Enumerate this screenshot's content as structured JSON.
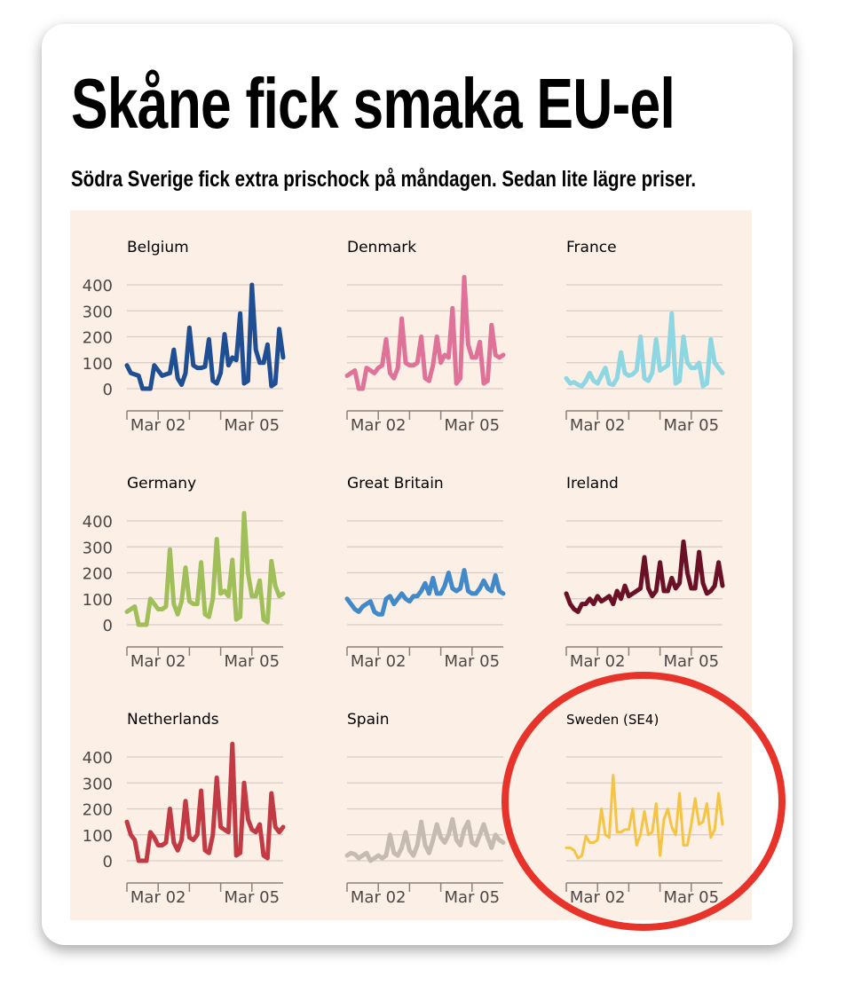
{
  "title": "Skåne fick smaka EU-el",
  "subtitle": "Södra Sverige fick extra prischock på måndagen. Sedan lite lägre priser.",
  "chart_data": {
    "type": "line",
    "layout": "small-multiples 3x3",
    "x_range_days": [
      "Mar 01",
      "Mar 06"
    ],
    "x_step_hours": 3,
    "xticks": [
      "Mar 01",
      "Mar 02",
      "Mar 03",
      "Mar 04",
      "Mar 05"
    ],
    "xtick_labels": [
      "",
      "Mar 02",
      "",
      "",
      "Mar 05"
    ],
    "yticks": [
      0,
      100,
      200,
      300,
      400
    ],
    "ylim": [
      0,
      450
    ],
    "grid": true,
    "series": [
      {
        "name": "Belgium",
        "color": "#1f4e93",
        "show_yticks": true,
        "values": [
          90,
          60,
          55,
          50,
          0,
          0,
          0,
          90,
          70,
          50,
          55,
          60,
          150,
          40,
          15,
          60,
          235,
          90,
          80,
          80,
          85,
          190,
          30,
          20,
          60,
          210,
          90,
          120,
          110,
          290,
          20,
          30,
          400,
          150,
          100,
          100,
          170,
          10,
          20,
          230,
          120
        ]
      },
      {
        "name": "Denmark",
        "color": "#de7298",
        "show_yticks": false,
        "values": [
          50,
          60,
          70,
          0,
          0,
          80,
          70,
          60,
          80,
          90,
          190,
          60,
          40,
          80,
          270,
          100,
          90,
          90,
          100,
          200,
          40,
          30,
          90,
          200,
          100,
          130,
          120,
          310,
          20,
          40,
          430,
          170,
          120,
          120,
          180,
          20,
          30,
          245,
          130,
          120,
          130
        ]
      },
      {
        "name": "France",
        "color": "#8dd6e2",
        "show_yticks": false,
        "values": [
          40,
          20,
          25,
          15,
          10,
          30,
          60,
          30,
          20,
          50,
          80,
          20,
          15,
          40,
          140,
          60,
          50,
          55,
          70,
          200,
          40,
          30,
          60,
          190,
          70,
          80,
          90,
          290,
          20,
          30,
          200,
          100,
          80,
          80,
          100,
          10,
          20,
          190,
          100,
          80,
          60
        ]
      },
      {
        "name": "Germany",
        "color": "#a0bf5a",
        "show_yticks": true,
        "values": [
          50,
          60,
          70,
          0,
          0,
          0,
          100,
          80,
          60,
          60,
          70,
          290,
          80,
          40,
          90,
          220,
          90,
          80,
          80,
          240,
          40,
          30,
          100,
          330,
          120,
          130,
          110,
          250,
          20,
          30,
          430,
          200,
          110,
          110,
          170,
          20,
          10,
          245,
          150,
          110,
          120
        ]
      },
      {
        "name": "Great Britain",
        "color": "#4189c9",
        "show_yticks": false,
        "values": [
          100,
          80,
          60,
          50,
          70,
          80,
          90,
          50,
          40,
          40,
          100,
          110,
          80,
          100,
          120,
          100,
          90,
          110,
          110,
          130,
          160,
          120,
          180,
          120,
          120,
          150,
          200,
          140,
          130,
          140,
          210,
          130,
          120,
          120,
          140,
          170,
          140,
          130,
          190,
          130,
          120
        ]
      },
      {
        "name": "Ireland",
        "color": "#6a1127",
        "show_yticks": false,
        "values": [
          120,
          80,
          60,
          50,
          80,
          80,
          100,
          80,
          110,
          90,
          100,
          110,
          80,
          130,
          100,
          150,
          110,
          120,
          130,
          140,
          260,
          140,
          110,
          130,
          240,
          130,
          130,
          180,
          140,
          160,
          320,
          200,
          140,
          140,
          280,
          160,
          120,
          130,
          150,
          240,
          150
        ]
      },
      {
        "name": "Netherlands",
        "color": "#c23a43",
        "show_yticks": true,
        "values": [
          150,
          100,
          80,
          0,
          0,
          0,
          110,
          90,
          60,
          60,
          70,
          200,
          70,
          40,
          80,
          230,
          90,
          80,
          100,
          270,
          40,
          30,
          100,
          320,
          130,
          120,
          110,
          450,
          20,
          30,
          300,
          160,
          120,
          110,
          140,
          20,
          10,
          260,
          130,
          110,
          130
        ]
      },
      {
        "name": "Spain",
        "color": "#c5bbb1",
        "show_yticks": false,
        "values": [
          20,
          30,
          25,
          10,
          20,
          30,
          0,
          10,
          20,
          10,
          20,
          100,
          30,
          20,
          50,
          110,
          40,
          20,
          60,
          150,
          60,
          30,
          80,
          140,
          90,
          70,
          100,
          160,
          80,
          60,
          120,
          150,
          70,
          60,
          100,
          140,
          90,
          50,
          100,
          80,
          70
        ]
      },
      {
        "name": "Sweden (SE4)",
        "color": "#f5c444",
        "show_yticks": false,
        "highlighted": true,
        "values": [
          50,
          50,
          40,
          10,
          20,
          95,
          70,
          70,
          80,
          200,
          100,
          90,
          330,
          110,
          110,
          120,
          120,
          200,
          60,
          100,
          190,
          100,
          110,
          220,
          20,
          160,
          200,
          130,
          100,
          260,
          60,
          60,
          140,
          240,
          140,
          150,
          220,
          90,
          120,
          260,
          140
        ]
      }
    ]
  },
  "colors": {
    "panel_bg": "#fcefe6",
    "highlight_circle": "#e8332a"
  }
}
